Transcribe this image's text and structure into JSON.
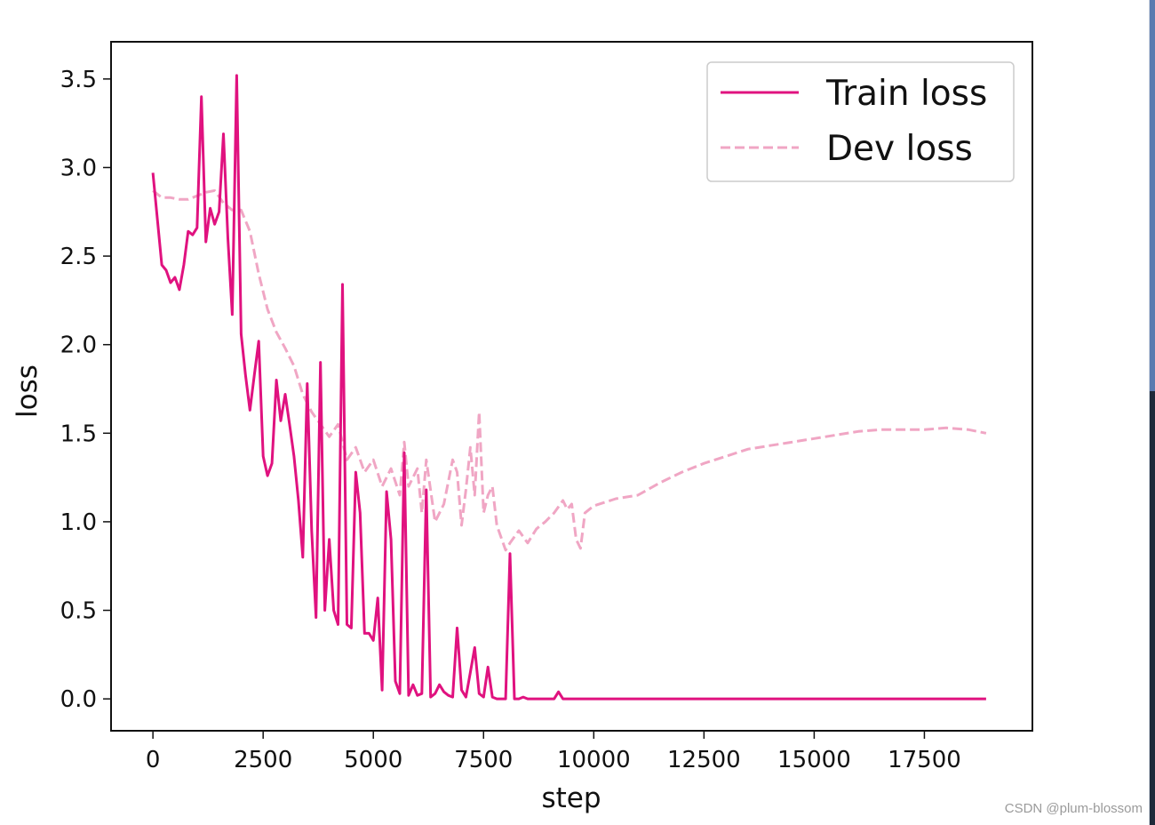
{
  "watermark": "CSDN @plum-blossom",
  "chart_data": {
    "type": "line",
    "title": "",
    "xlabel": "step",
    "ylabel": "loss",
    "xlim": [
      -950,
      19950
    ],
    "ylim": [
      -0.18,
      3.71
    ],
    "xticks": [
      0,
      2500,
      5000,
      7500,
      10000,
      12500,
      15000,
      17500
    ],
    "xtick_labels": [
      "0",
      "2500",
      "5000",
      "7500",
      "10000",
      "12500",
      "15000",
      "17500"
    ],
    "yticks": [
      0.0,
      0.5,
      1.0,
      1.5,
      2.0,
      2.5,
      3.0,
      3.5
    ],
    "ytick_labels": [
      "0.0",
      "0.5",
      "1.0",
      "1.5",
      "2.0",
      "2.5",
      "3.0",
      "3.5"
    ],
    "grid": false,
    "legend_position": "top-right",
    "series": [
      {
        "name": "Train loss",
        "color": "#e0127f",
        "style": "solid",
        "x": [
          0,
          200,
          300,
          400,
          500,
          600,
          700,
          800,
          900,
          1000,
          1100,
          1200,
          1300,
          1400,
          1500,
          1600,
          1700,
          1800,
          1900,
          2000,
          2100,
          2200,
          2300,
          2400,
          2500,
          2600,
          2700,
          2800,
          2900,
          3000,
          3100,
          3200,
          3300,
          3400,
          3500,
          3600,
          3700,
          3800,
          3900,
          4000,
          4100,
          4200,
          4300,
          4400,
          4500,
          4600,
          4700,
          4800,
          4900,
          5000,
          5100,
          5200,
          5300,
          5400,
          5500,
          5600,
          5700,
          5800,
          5900,
          6000,
          6100,
          6200,
          6300,
          6400,
          6500,
          6600,
          6700,
          6800,
          6900,
          7000,
          7100,
          7200,
          7300,
          7400,
          7500,
          7600,
          7700,
          7800,
          7900,
          8000,
          8100,
          8200,
          8300,
          8400,
          8500,
          8600,
          8700,
          8800,
          8900,
          9000,
          9100,
          9200,
          9300,
          9400,
          9500,
          9600,
          9700,
          9800,
          9900,
          10000,
          11000,
          12000,
          13000,
          14000,
          15000,
          16000,
          17000,
          18000,
          18900
        ],
        "y": [
          2.97,
          2.45,
          2.42,
          2.35,
          2.38,
          2.31,
          2.45,
          2.64,
          2.62,
          2.66,
          3.4,
          2.58,
          2.77,
          2.68,
          2.75,
          3.19,
          2.6,
          2.17,
          3.52,
          2.06,
          1.83,
          1.63,
          1.83,
          2.02,
          1.37,
          1.26,
          1.33,
          1.8,
          1.57,
          1.72,
          1.55,
          1.37,
          1.12,
          0.8,
          1.78,
          0.95,
          0.46,
          1.9,
          0.5,
          0.9,
          0.5,
          0.42,
          2.34,
          0.42,
          0.4,
          1.28,
          1.05,
          0.37,
          0.37,
          0.33,
          0.57,
          0.05,
          1.17,
          0.9,
          0.1,
          0.03,
          1.39,
          0.02,
          0.08,
          0.02,
          0.03,
          1.18,
          0.01,
          0.03,
          0.08,
          0.04,
          0.02,
          0.01,
          0.4,
          0.05,
          0.01,
          0.15,
          0.29,
          0.03,
          0.01,
          0.18,
          0.01,
          0.0,
          0.0,
          0.0,
          0.82,
          0.0,
          0.0,
          0.01,
          0.0,
          0.0,
          0.0,
          0.0,
          0.0,
          0.0,
          0.0,
          0.04,
          0.0,
          0.0,
          0.0,
          0.0,
          0.0,
          0.0,
          0.0,
          0.0,
          0.0,
          0.0,
          0.0,
          0.0,
          0.0,
          0.0,
          0.0,
          0.0,
          0.0
        ]
      },
      {
        "name": "Dev loss",
        "color": "#f0a6c4",
        "style": "dashed",
        "x": [
          0,
          200,
          400,
          600,
          800,
          1000,
          1200,
          1400,
          1600,
          1800,
          2000,
          2200,
          2400,
          2600,
          2800,
          3000,
          3200,
          3400,
          3600,
          3800,
          4000,
          4200,
          4400,
          4600,
          4800,
          5000,
          5200,
          5400,
          5600,
          5700,
          5800,
          6000,
          6100,
          6200,
          6400,
          6600,
          6800,
          6900,
          7000,
          7100,
          7200,
          7300,
          7400,
          7500,
          7600,
          7700,
          7800,
          8000,
          8100,
          8300,
          8500,
          8700,
          8900,
          9100,
          9300,
          9400,
          9500,
          9600,
          9700,
          9800,
          10000,
          10500,
          11000,
          11500,
          12000,
          12500,
          13000,
          13500,
          14000,
          14500,
          15000,
          15500,
          16000,
          16500,
          17000,
          17500,
          18000,
          18500,
          18900
        ],
        "y": [
          2.87,
          2.83,
          2.83,
          2.82,
          2.82,
          2.84,
          2.86,
          2.87,
          2.8,
          2.76,
          2.76,
          2.64,
          2.4,
          2.2,
          2.07,
          1.98,
          1.88,
          1.72,
          1.62,
          1.55,
          1.48,
          1.55,
          1.35,
          1.42,
          1.28,
          1.35,
          1.2,
          1.3,
          1.15,
          1.45,
          1.2,
          1.3,
          1.05,
          1.35,
          1.0,
          1.1,
          1.35,
          1.28,
          0.98,
          1.18,
          1.42,
          1.15,
          1.62,
          1.05,
          1.15,
          1.2,
          0.98,
          0.84,
          0.88,
          0.95,
          0.88,
          0.96,
          1.0,
          1.05,
          1.12,
          1.07,
          1.1,
          0.9,
          0.85,
          1.05,
          1.09,
          1.13,
          1.15,
          1.22,
          1.28,
          1.33,
          1.37,
          1.41,
          1.43,
          1.45,
          1.47,
          1.49,
          1.51,
          1.52,
          1.52,
          1.52,
          1.53,
          1.52,
          1.5
        ]
      }
    ]
  }
}
